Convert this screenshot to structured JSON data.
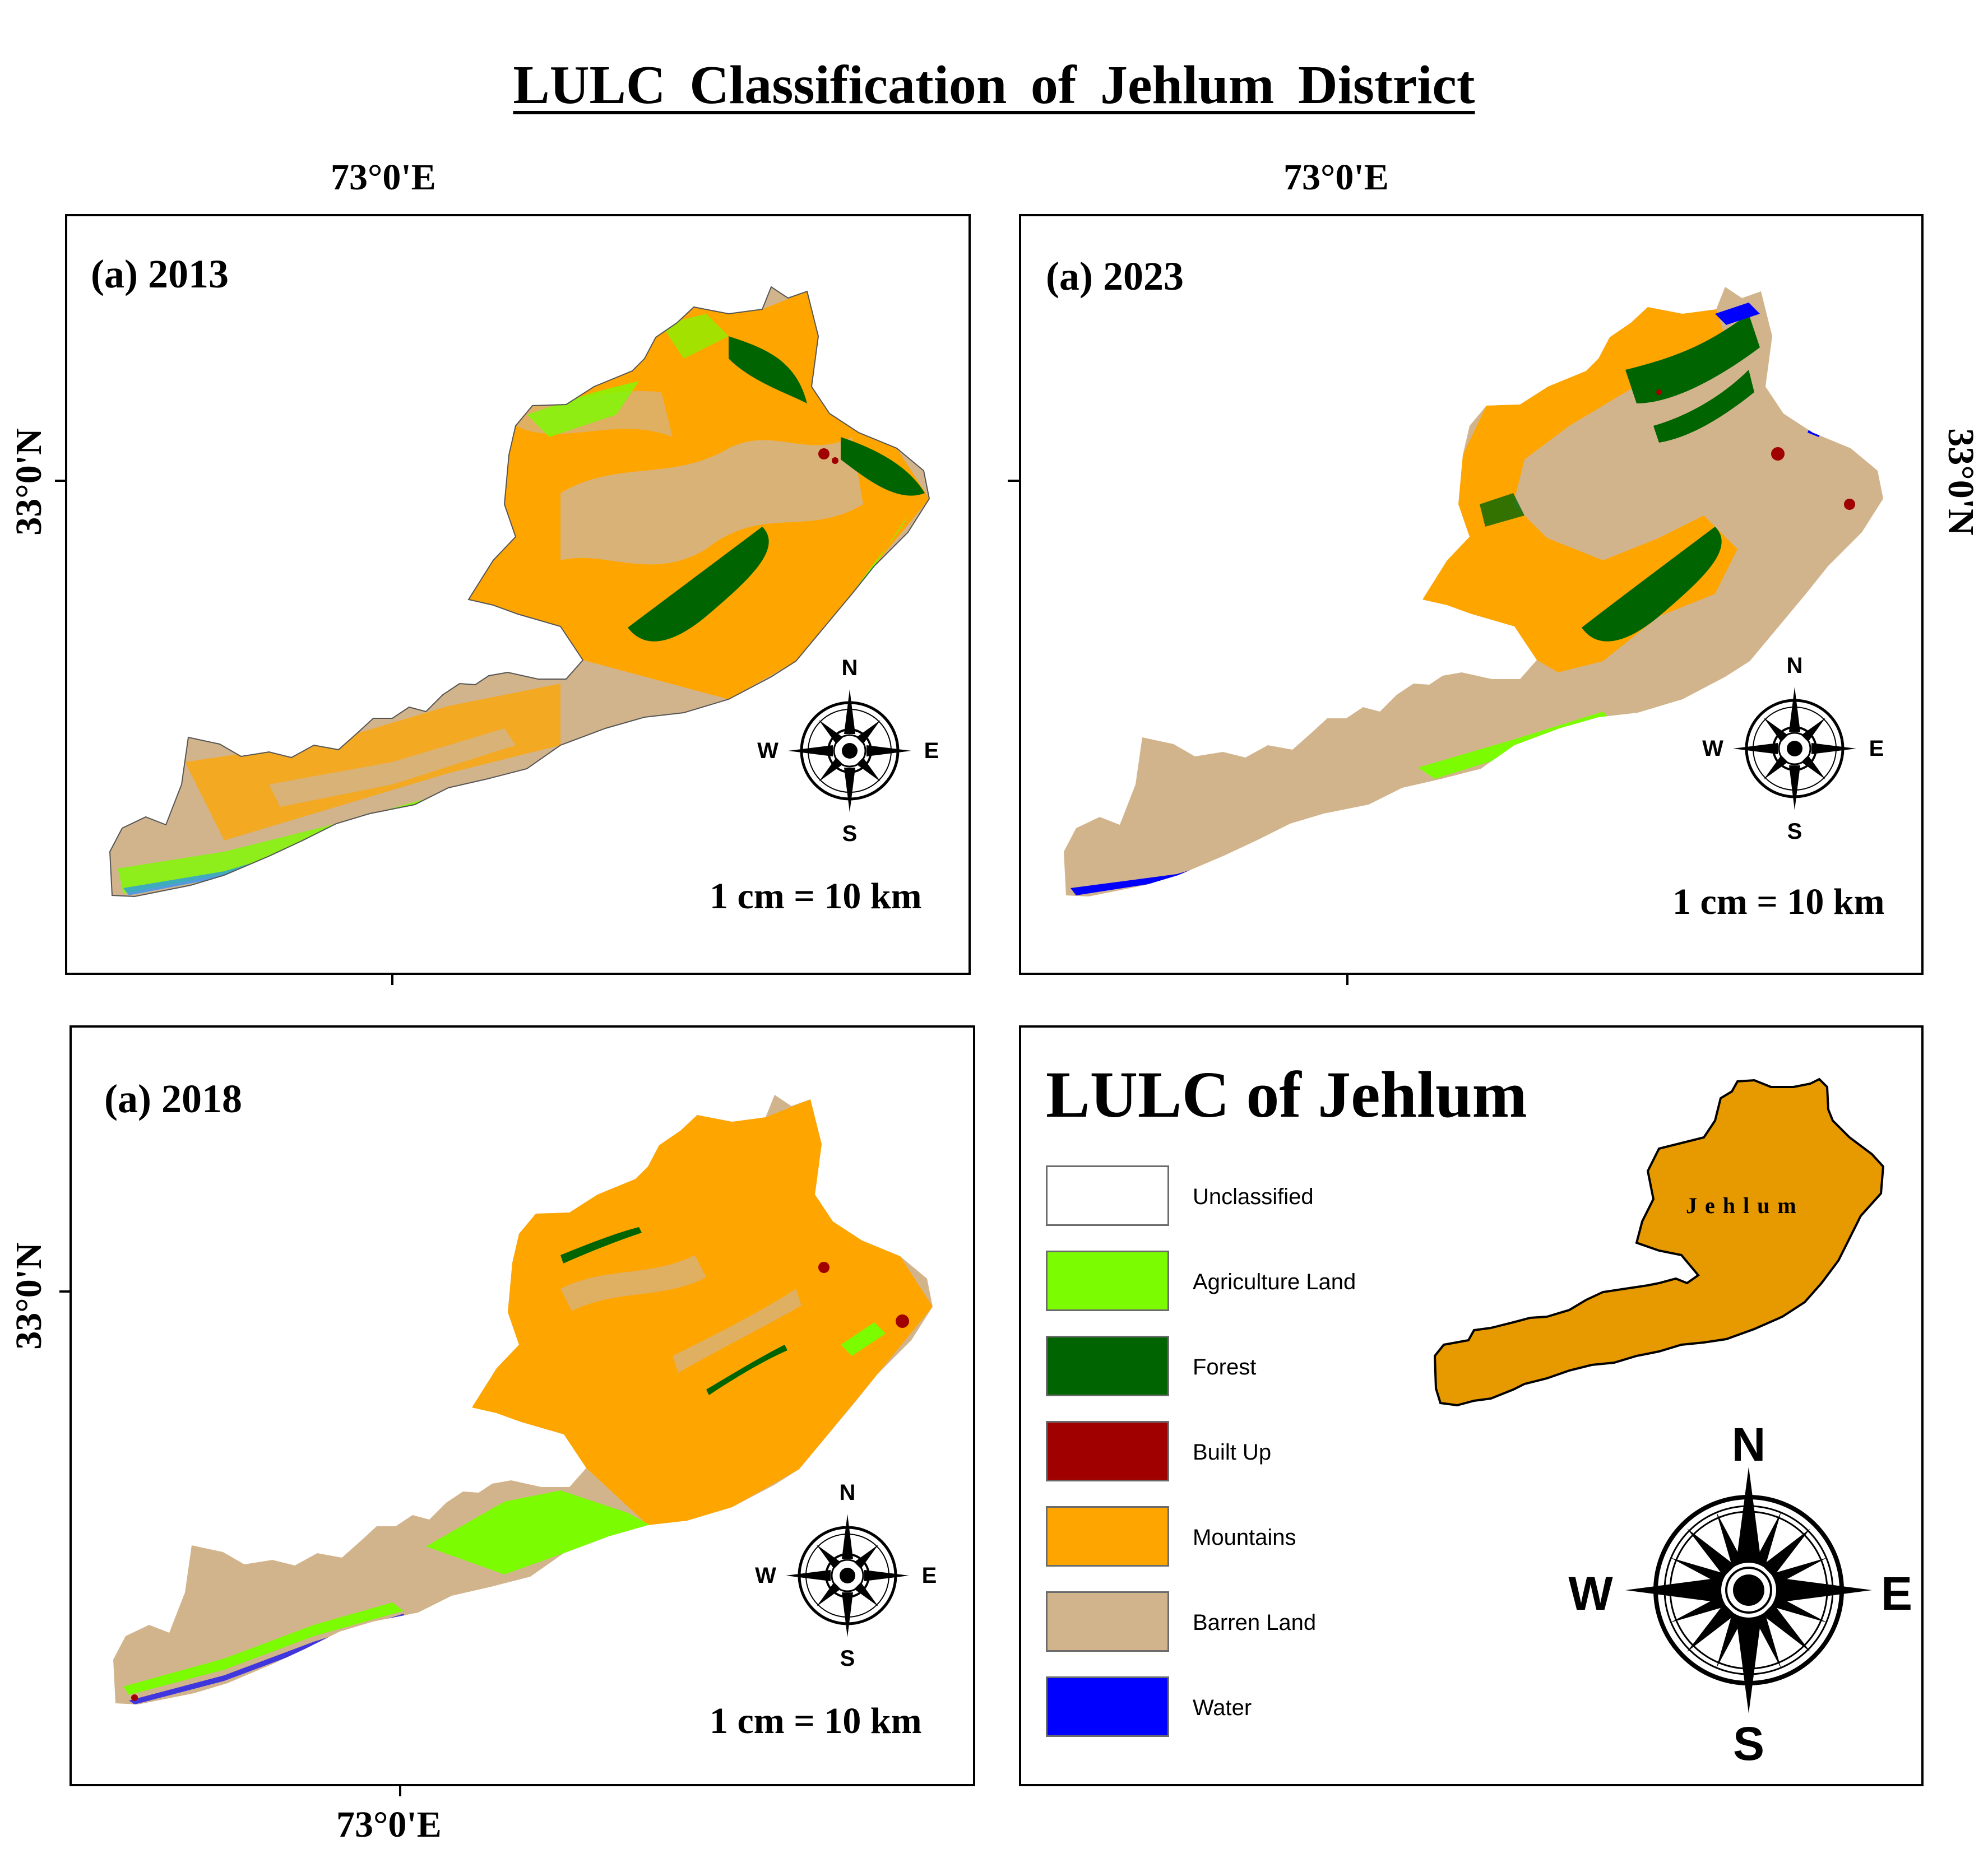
{
  "title": "LULC  Classification of  Jehlum  District",
  "coords": {
    "lon_top_left": "73°0'E",
    "lon_top_right": "73°0'E",
    "lon_bottom": "73°0'E",
    "lat_left_top": "33°0'N",
    "lat_right": "33°0'N",
    "lat_left_bottom": "33°0'N"
  },
  "panels": [
    {
      "label": "(a) 2013",
      "scale": "1 cm = 10 km"
    },
    {
      "label": "(a) 2023",
      "scale": "1 cm = 10 km"
    },
    {
      "label": "(a) 2018",
      "scale": "1 cm = 10 km"
    }
  ],
  "compass": {
    "n": "N",
    "s": "S",
    "e": "E",
    "w": "W"
  },
  "legend": {
    "title": "LULC of Jehlum",
    "inset_label": "Jehlum",
    "items": [
      {
        "label": "Unclassified",
        "color": "#ffffff"
      },
      {
        "label": "Agriculture Land",
        "color": "#7cfc00"
      },
      {
        "label": "Forest",
        "color": "#006400"
      },
      {
        "label": "Built Up",
        "color": "#a00000"
      },
      {
        "label": "Mountains",
        "color": "#ffa500"
      },
      {
        "label": "Barren Land",
        "color": "#d2b48c"
      },
      {
        "label": "Water",
        "color": "#0000ff"
      }
    ]
  },
  "colors": {
    "mountains": "#ffa500",
    "barren": "#d2b48c",
    "forest": "#006400",
    "agriculture": "#7cfc00",
    "builtup": "#a00000",
    "water": "#0000ff",
    "inset_fill": "#e69a00"
  }
}
